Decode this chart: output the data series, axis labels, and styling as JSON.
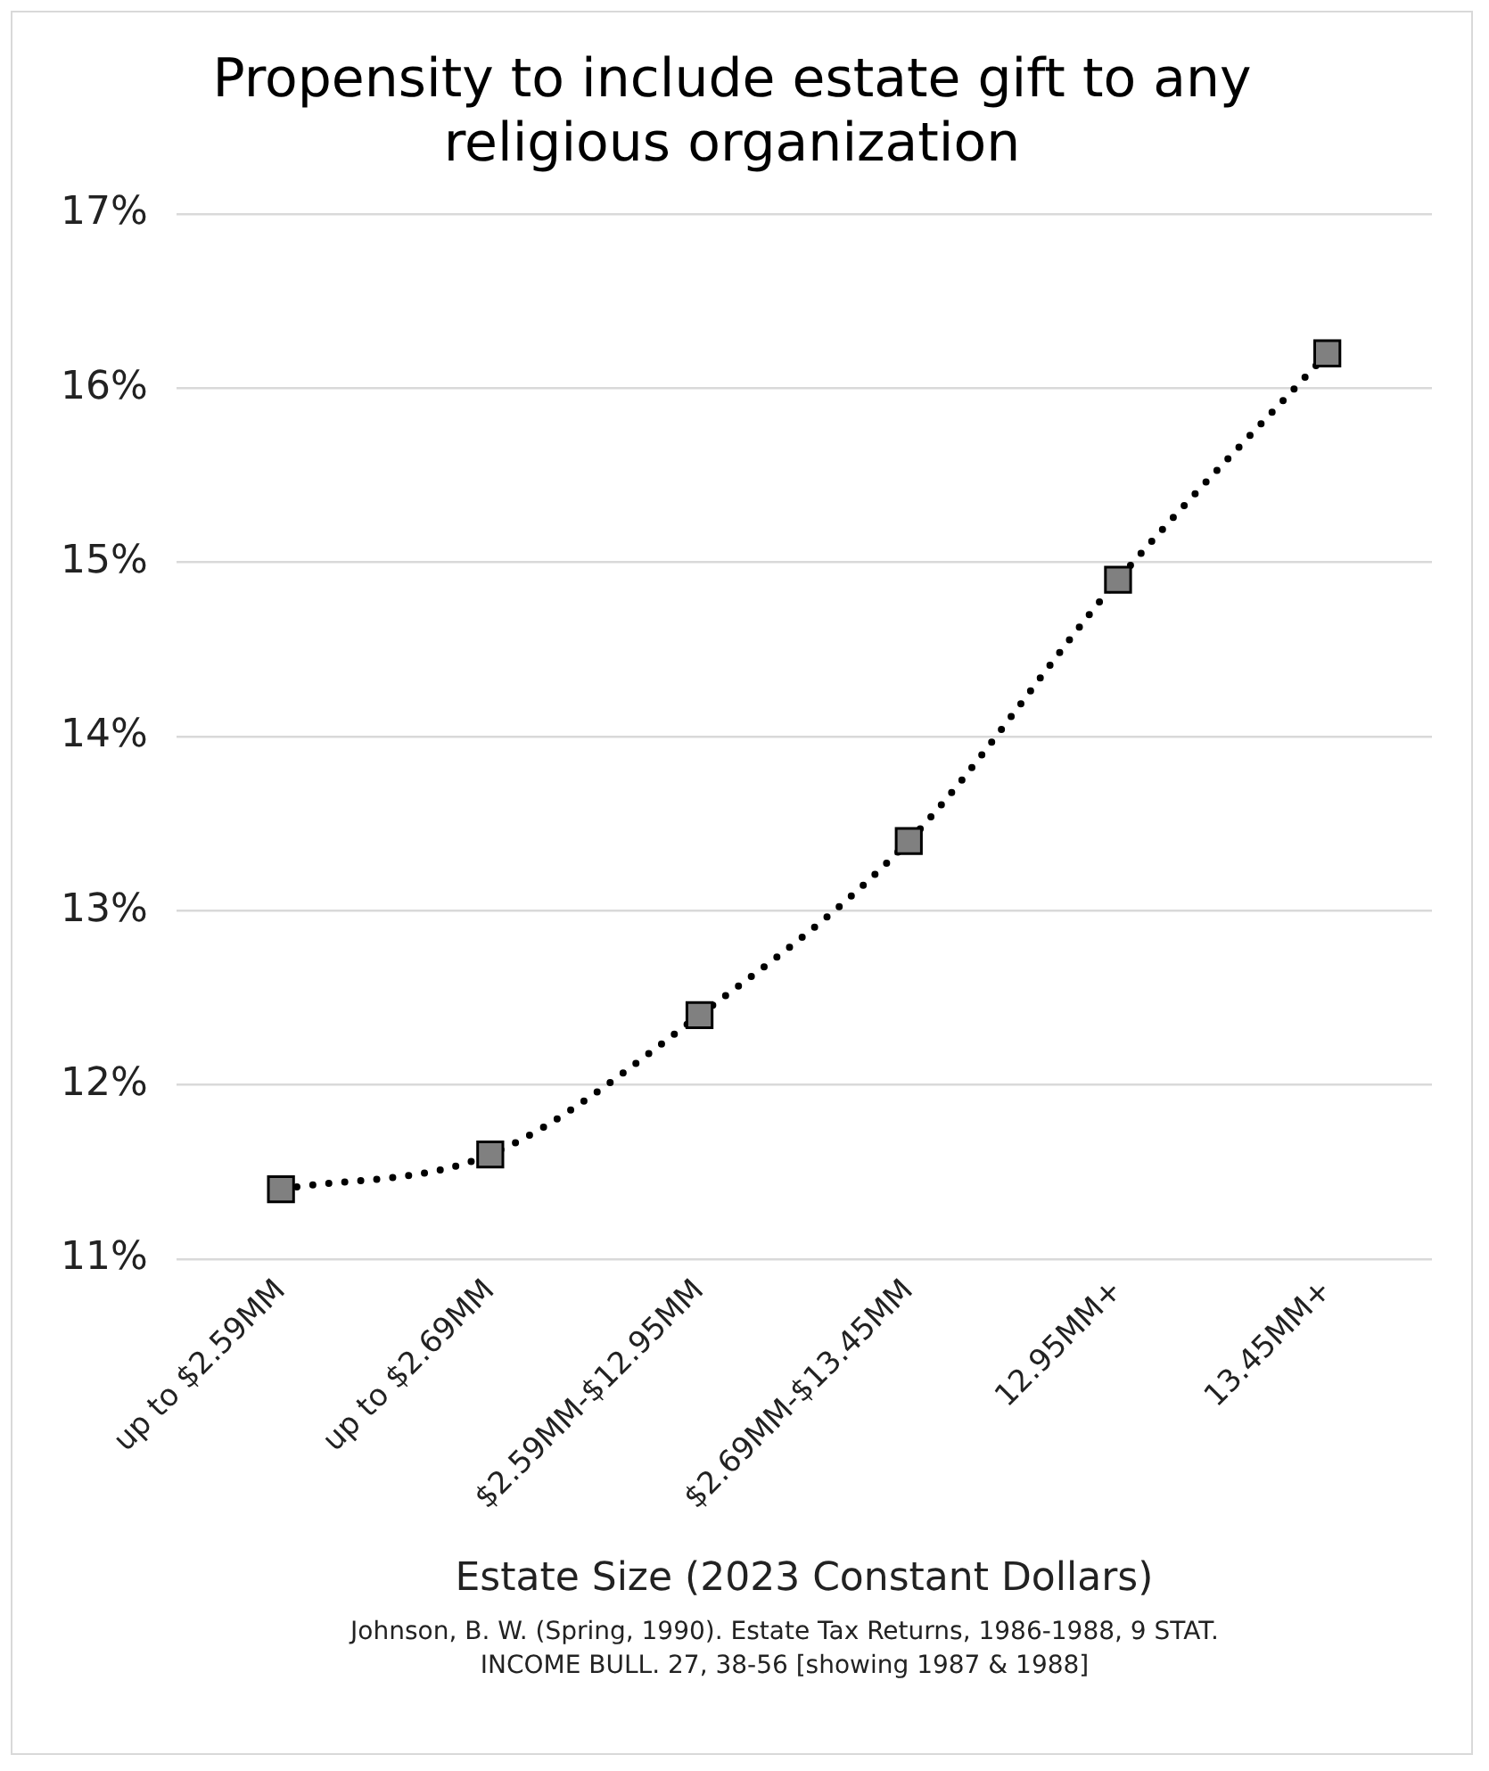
{
  "chart_data": {
    "type": "line",
    "title": "Propensity to include estate gift to any religious organization",
    "xlabel": "Estate Size (2023 Constant Dollars)",
    "categories": [
      "up to $2.59MM",
      "up to $2.69MM",
      "$2.59MM-$12.95MM",
      "$2.69MM-$13.45MM",
      "12.95MM+",
      "13.45MM+"
    ],
    "series": [
      {
        "color": "#808080",
        "values": [
          11.4,
          11.6,
          12.4,
          13.4,
          14.9,
          16.2
        ]
      }
    ],
    "ylim": [
      11,
      17
    ],
    "yticks": [
      {
        "value": 11,
        "label": "11%"
      },
      {
        "value": 12,
        "label": "12%"
      },
      {
        "value": 13,
        "label": "13%"
      },
      {
        "value": 14,
        "label": "14%"
      },
      {
        "value": 15,
        "label": "15%"
      },
      {
        "value": 16,
        "label": "16%"
      },
      {
        "value": 17,
        "label": "17%"
      }
    ],
    "grid": "y",
    "legend": false,
    "marker": "square",
    "line_style": "dotted",
    "annotations": [
      "Johnson, B. W. (Spring, 1990). Estate Tax Returns, 1986-1988, 9 STAT. INCOME BULL. 27, 38-56 [showing 1987 & 1988]"
    ]
  }
}
